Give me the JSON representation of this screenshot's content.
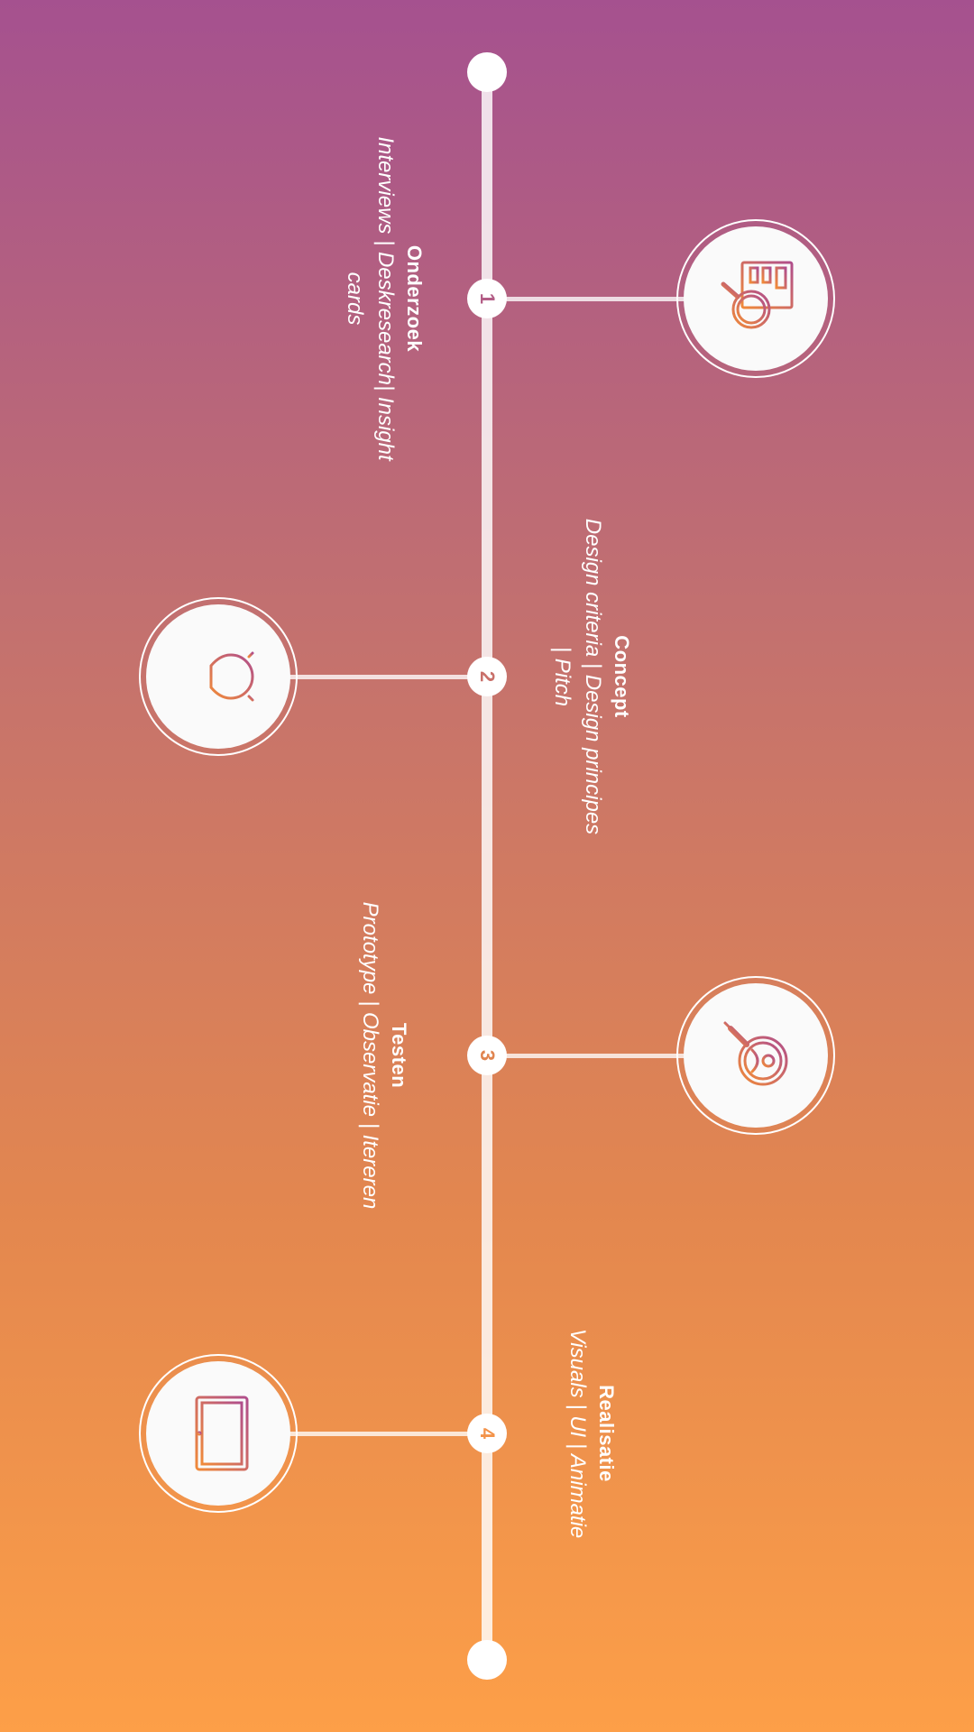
{
  "timeline": {
    "steps": [
      {
        "number": "1",
        "title": "Onderzoek",
        "description": "Interviews | Deskresearch| Insight cards",
        "icon": "research-magnifier-icon",
        "color": "#b35d86"
      },
      {
        "number": "2",
        "title": "Concept",
        "description": "Design criteria | Design principes | Pitch",
        "icon": "lightbulb-icon",
        "color": "#c9706a"
      },
      {
        "number": "3",
        "title": "Testen",
        "description": "Prototype | Observatie | Itereren",
        "icon": "user-magnifier-icon",
        "color": "#e0844f"
      },
      {
        "number": "4",
        "title": "Realisatie",
        "description": "Visuals | UI | Animatie",
        "icon": "monitor-icon",
        "color": "#f3934a"
      }
    ]
  },
  "colors": {
    "gradient_top": "#a5518f",
    "gradient_bottom": "#fd9f48",
    "icon_stroke_start": "#b04e8c",
    "icon_stroke_end": "#f08a3a"
  }
}
